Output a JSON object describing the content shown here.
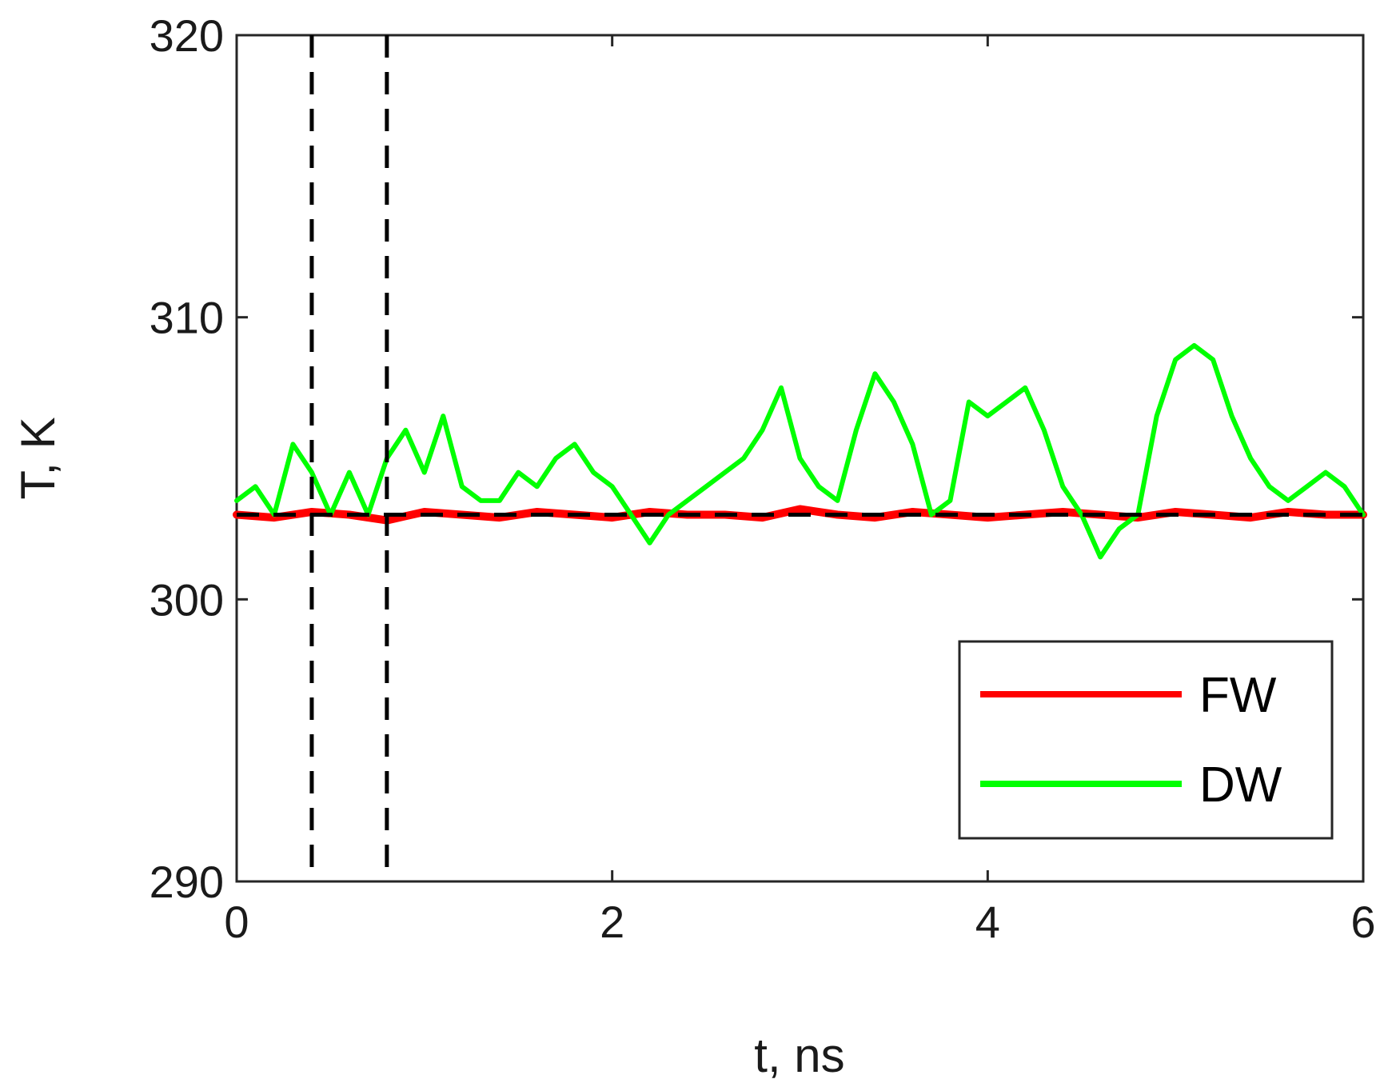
{
  "chart_data": {
    "type": "line",
    "xlabel": "t, ns",
    "ylabel": "T, K",
    "xlim": [
      0,
      6
    ],
    "ylim": [
      290,
      320
    ],
    "x_ticks": [
      "0",
      "2",
      "4",
      "6"
    ],
    "y_ticks": [
      "290",
      "300",
      "310",
      "320"
    ],
    "grid": false,
    "legend_position": "bottom-right",
    "reference_lines": {
      "horizontal": {
        "y": 303,
        "style": "dashed",
        "color": "#000000"
      },
      "vertical": [
        {
          "x": 0.4,
          "style": "dashed",
          "color": "#000000"
        },
        {
          "x": 0.8,
          "style": "dashed",
          "color": "#000000"
        }
      ]
    },
    "series": [
      {
        "name": "FW",
        "color": "#ff0000",
        "x": [
          0,
          0.2,
          0.4,
          0.6,
          0.8,
          1.0,
          1.2,
          1.4,
          1.6,
          1.8,
          2.0,
          2.2,
          2.4,
          2.6,
          2.8,
          3.0,
          3.2,
          3.4,
          3.6,
          3.8,
          4.0,
          4.2,
          4.4,
          4.6,
          4.8,
          5.0,
          5.2,
          5.4,
          5.6,
          5.8,
          6.0
        ],
        "y": [
          303.0,
          302.9,
          303.1,
          303.0,
          302.8,
          303.1,
          303.0,
          302.9,
          303.1,
          303.0,
          302.9,
          303.1,
          303.0,
          303.0,
          302.9,
          303.2,
          303.0,
          302.9,
          303.1,
          303.0,
          302.9,
          303.0,
          303.1,
          303.0,
          302.9,
          303.1,
          303.0,
          302.9,
          303.1,
          303.0,
          303.0
        ]
      },
      {
        "name": "DW",
        "color": "#00ff00",
        "x": [
          0,
          0.1,
          0.2,
          0.3,
          0.4,
          0.5,
          0.6,
          0.7,
          0.8,
          0.9,
          1.0,
          1.1,
          1.2,
          1.3,
          1.4,
          1.5,
          1.6,
          1.7,
          1.8,
          1.9,
          2.0,
          2.1,
          2.2,
          2.3,
          2.4,
          2.5,
          2.6,
          2.7,
          2.8,
          2.9,
          3.0,
          3.1,
          3.2,
          3.3,
          3.4,
          3.5,
          3.6,
          3.7,
          3.8,
          3.9,
          4.0,
          4.1,
          4.2,
          4.3,
          4.4,
          4.5,
          4.6,
          4.7,
          4.8,
          4.9,
          5.0,
          5.1,
          5.2,
          5.3,
          5.4,
          5.5,
          5.6,
          5.7,
          5.8,
          5.9,
          6.0
        ],
        "y": [
          303.5,
          304.0,
          303.0,
          305.5,
          304.5,
          303.0,
          304.5,
          303.0,
          305.0,
          306.0,
          304.5,
          306.5,
          304.0,
          303.5,
          303.5,
          304.5,
          304.0,
          305.0,
          305.5,
          304.5,
          304.0,
          303.0,
          302.0,
          303.0,
          303.5,
          304.0,
          304.5,
          305.0,
          306.0,
          307.5,
          305.0,
          304.0,
          303.5,
          306.0,
          308.0,
          307.0,
          305.5,
          303.0,
          303.5,
          307.0,
          306.5,
          307.0,
          307.5,
          306.0,
          304.0,
          303.0,
          301.5,
          302.5,
          303.0,
          306.5,
          308.5,
          309.0,
          308.5,
          306.5,
          305.0,
          304.0,
          303.5,
          304.0,
          304.5,
          304.0,
          303.0
        ]
      }
    ]
  }
}
